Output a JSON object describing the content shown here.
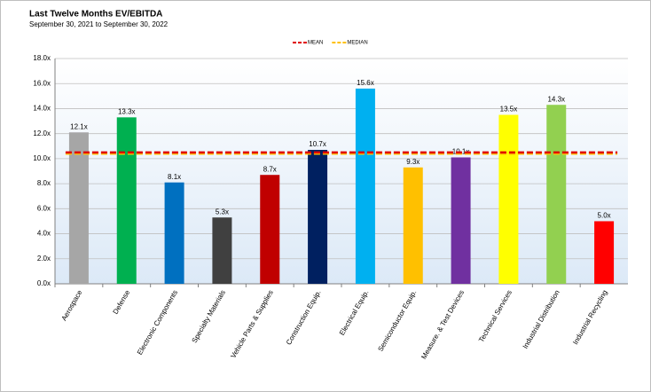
{
  "chart_data": {
    "type": "bar",
    "title": "Last Twelve Months EV/EBITDA",
    "subtitle": "September 30, 2021 to September 30, 2022",
    "categories": [
      "Aerospace",
      "Defense",
      "Electronic Components",
      "Specialty Materials",
      "Vehicle Parts & Supplies",
      "Construction Equip.",
      "Electrical Equip.",
      "Semiconductor Equip.",
      "Measure. & Test Devices",
      "Technical Services",
      "Industrial Distribution",
      "Industrial Recycling"
    ],
    "values": [
      12.1,
      13.3,
      8.1,
      5.3,
      8.7,
      10.7,
      15.6,
      9.3,
      10.1,
      13.5,
      14.3,
      5.0
    ],
    "value_labels": [
      "12.1x",
      "13.3x",
      "8.1x",
      "5.3x",
      "8.7x",
      "10.7x",
      "15.6x",
      "9.3x",
      "10.1x",
      "13.5x",
      "14.3x",
      "5.0x"
    ],
    "colors": [
      "#a6a6a6",
      "#00b050",
      "#0070c0",
      "#404040",
      "#c00000",
      "#002060",
      "#00b0f0",
      "#ffc000",
      "#7030a0",
      "#ffff00",
      "#92d050",
      "#ff0000"
    ],
    "reference_lines": [
      {
        "name": "MEAN",
        "value": 10.5,
        "color": "#e00000"
      },
      {
        "name": "MEDIAN",
        "value": 10.4,
        "color": "#ffc000"
      }
    ],
    "ylim": [
      0,
      18
    ],
    "yticks": [
      {
        "value": 0,
        "label": "0.0x"
      },
      {
        "value": 2,
        "label": "2.0x"
      },
      {
        "value": 4,
        "label": "4.0x"
      },
      {
        "value": 6,
        "label": "6.0x"
      },
      {
        "value": 8,
        "label": "8.0x"
      },
      {
        "value": 10,
        "label": "10.0x"
      },
      {
        "value": 12,
        "label": "12.0x"
      },
      {
        "value": 14,
        "label": "14.0x"
      },
      {
        "value": 16,
        "label": "16.0x"
      },
      {
        "value": 18,
        "label": "18.0x"
      }
    ],
    "grid": true,
    "legend": "top"
  }
}
